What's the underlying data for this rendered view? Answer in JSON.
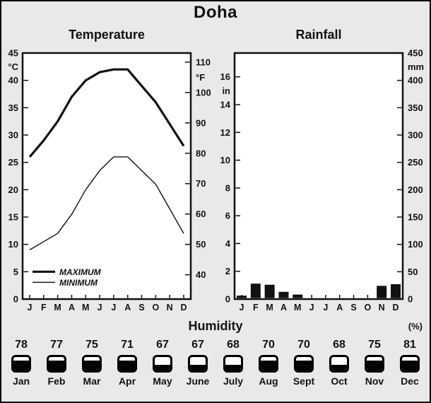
{
  "title": "Doha",
  "chart_data": [
    {
      "type": "line",
      "title": "Temperature",
      "categories": [
        "J",
        "F",
        "M",
        "A",
        "M",
        "J",
        "J",
        "A",
        "S",
        "O",
        "N",
        "D"
      ],
      "series": [
        {
          "name": "MAXIMUM",
          "values": [
            26,
            29,
            32.5,
            37,
            40,
            41.5,
            42,
            42,
            39,
            36,
            32,
            28
          ]
        },
        {
          "name": "MINIMUM",
          "values": [
            9,
            10.5,
            12,
            15.5,
            20,
            23.5,
            26,
            26,
            23.5,
            21,
            16.5,
            12
          ]
        }
      ],
      "left_axis": {
        "label": "°C",
        "ticks": [
          45,
          40,
          35,
          30,
          25,
          20,
          15,
          10,
          5,
          0
        ],
        "range": [
          0,
          45
        ]
      },
      "right_axis": {
        "label": "°F",
        "ticks": [
          110,
          100,
          90,
          80,
          70,
          60,
          50,
          40
        ]
      },
      "legend": [
        "MAXIMUM",
        "MINIMUM"
      ],
      "legend_position": "bottom-left",
      "grid": false
    },
    {
      "type": "bar",
      "title": "Rainfall",
      "categories": [
        "J",
        "F",
        "M",
        "A",
        "M",
        "J",
        "J",
        "A",
        "S",
        "O",
        "N",
        "D"
      ],
      "values_mm": [
        3,
        25,
        23,
        10,
        5,
        0,
        0,
        0,
        0,
        0,
        21,
        24
      ],
      "values_in": [
        0.1,
        1.0,
        0.9,
        0.4,
        0.2,
        0,
        0,
        0,
        0,
        0,
        0.8,
        0.9
      ],
      "left_axis": {
        "label": "in",
        "ticks": [
          16,
          14,
          12,
          10,
          8,
          6,
          4,
          2,
          0
        ]
      },
      "right_axis": {
        "label": "mm",
        "ticks": [
          450,
          400,
          350,
          300,
          250,
          200,
          150,
          100,
          50,
          0
        ],
        "range": [
          0,
          450
        ]
      },
      "grid": false
    }
  ],
  "humidity": {
    "title": "Humidity",
    "unit": "(%)",
    "months": [
      "Jan",
      "Feb",
      "Mar",
      "Apr",
      "May",
      "June",
      "July",
      "Aug",
      "Sept",
      "Oct",
      "Nov",
      "Dec"
    ],
    "values": [
      78,
      77,
      75,
      71,
      67,
      67,
      68,
      70,
      70,
      68,
      75,
      81
    ],
    "icon_fill": [
      "high",
      "high",
      "high",
      "high",
      "low",
      "low",
      "low",
      "high",
      "high",
      "low",
      "high",
      "high"
    ]
  },
  "colors": {
    "background": "#e9e9e9",
    "plot_background": "#ffffff",
    "ink": "#111111"
  }
}
